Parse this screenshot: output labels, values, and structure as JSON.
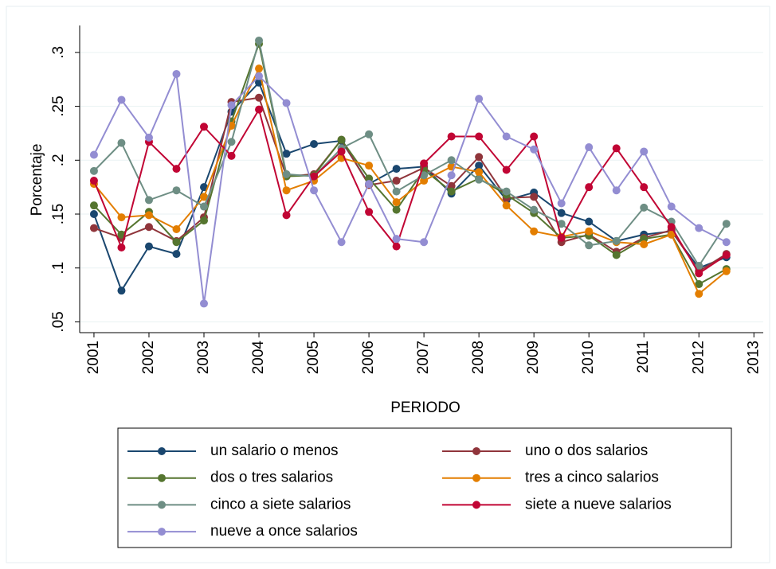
{
  "chart_data": {
    "type": "line",
    "x_label": "PERIODO",
    "y_label": "Porcentaje",
    "x": [
      2001,
      2001.5,
      2002,
      2002.5,
      2003,
      2003.5,
      2004,
      2004.5,
      2005,
      2005.5,
      2006,
      2006.5,
      2007,
      2007.5,
      2008,
      2008.5,
      2009,
      2009.5,
      2010,
      2010.5,
      2011,
      2011.5,
      2012,
      2012.5
    ],
    "xlim": [
      2000.74,
      2013.17
    ],
    "xticks": [
      2001,
      2002,
      2003,
      2004,
      2005,
      2006,
      2007,
      2008,
      2009,
      2010,
      2011,
      2012,
      2013
    ],
    "ylim": [
      0.04,
      0.325
    ],
    "yticks": [
      {
        "value": 0.05,
        "label": ".05"
      },
      {
        "value": 0.1,
        "label": ".1"
      },
      {
        "value": 0.15,
        "label": ".15"
      },
      {
        "value": 0.2,
        "label": ".2"
      },
      {
        "value": 0.25,
        "label": ".25"
      },
      {
        "value": 0.3,
        "label": ".3"
      }
    ],
    "grid": true,
    "legend": "bottom",
    "series": [
      {
        "name": "un salario o menos",
        "color": "#1a476f",
        "values": [
          0.15,
          0.079,
          0.12,
          0.113,
          0.175,
          0.245,
          0.272,
          0.206,
          0.215,
          0.218,
          0.178,
          0.192,
          0.194,
          0.169,
          0.195,
          0.163,
          0.17,
          0.151,
          0.143,
          0.125,
          0.131,
          0.134,
          0.1,
          0.11
        ]
      },
      {
        "name": "uno o dos salarios",
        "color": "#90353b",
        "values": [
          0.137,
          0.128,
          0.138,
          0.125,
          0.147,
          0.254,
          0.258,
          0.185,
          0.187,
          0.219,
          0.177,
          0.181,
          0.193,
          0.176,
          0.203,
          0.165,
          0.166,
          0.124,
          0.131,
          0.115,
          0.128,
          0.135,
          0.097,
          0.113
        ]
      },
      {
        "name": "dos o tres salarios",
        "color": "#55752f",
        "values": [
          0.158,
          0.131,
          0.152,
          0.124,
          0.144,
          0.236,
          0.308,
          0.185,
          0.186,
          0.219,
          0.183,
          0.154,
          0.191,
          0.171,
          0.183,
          0.168,
          0.151,
          0.128,
          0.13,
          0.112,
          0.127,
          0.131,
          0.085,
          0.099
        ]
      },
      {
        "name": "tres a cinco salarios",
        "color": "#e37e00",
        "values": [
          0.178,
          0.147,
          0.149,
          0.136,
          0.166,
          0.232,
          0.285,
          0.172,
          0.181,
          0.202,
          0.195,
          0.161,
          0.181,
          0.194,
          0.189,
          0.158,
          0.134,
          0.129,
          0.134,
          0.124,
          0.122,
          0.131,
          0.076,
          0.097
        ]
      },
      {
        "name": "cinco a siete salarios",
        "color": "#6e8e84",
        "values": [
          0.19,
          0.216,
          0.163,
          0.172,
          0.157,
          0.217,
          0.311,
          0.187,
          0.185,
          0.211,
          0.224,
          0.171,
          0.186,
          0.2,
          0.182,
          0.171,
          0.154,
          0.141,
          0.121,
          0.125,
          0.156,
          0.143,
          0.102,
          0.141
        ]
      },
      {
        "name": "siete a nueve salarios",
        "color": "#c10534",
        "values": [
          0.181,
          0.119,
          0.217,
          0.192,
          0.231,
          0.204,
          0.247,
          0.149,
          0.185,
          0.208,
          0.152,
          0.12,
          0.197,
          0.222,
          0.222,
          0.191,
          0.222,
          0.128,
          0.175,
          0.211,
          0.175,
          0.138,
          0.095,
          0.112
        ]
      },
      {
        "name": "nueve a once salarios",
        "color": "#938dd2",
        "values": [
          0.205,
          0.256,
          0.221,
          0.28,
          0.067,
          0.251,
          0.278,
          0.253,
          0.172,
          0.124,
          0.178,
          0.127,
          0.124,
          0.186,
          0.257,
          0.222,
          0.21,
          0.16,
          0.212,
          0.172,
          0.208,
          0.157,
          0.137,
          0.124
        ]
      }
    ]
  }
}
